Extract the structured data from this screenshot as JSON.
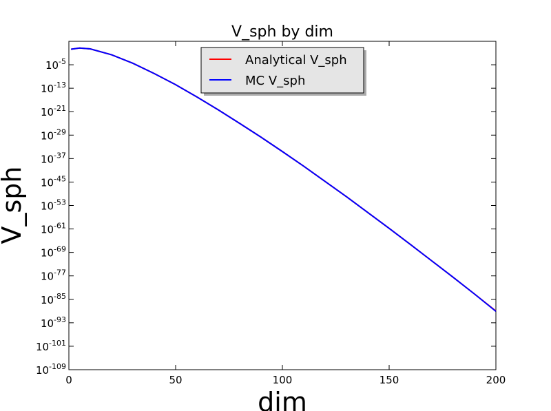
{
  "chart_data": {
    "type": "line",
    "title": "V_sph by dim",
    "xlabel": "dim",
    "ylabel": "V_sph",
    "xlim": [
      0,
      200
    ],
    "ylim_log10": [
      -109,
      3
    ],
    "yscale": "log",
    "x_ticks": [
      "0",
      "50",
      "100",
      "150",
      "200"
    ],
    "y_ticks": [
      {
        "exp": -5,
        "label": "-5"
      },
      {
        "exp": -13,
        "label": "-13"
      },
      {
        "exp": -21,
        "label": "-21"
      },
      {
        "exp": -29,
        "label": "-29"
      },
      {
        "exp": -37,
        "label": "-37"
      },
      {
        "exp": -45,
        "label": "-45"
      },
      {
        "exp": -53,
        "label": "-53"
      },
      {
        "exp": -61,
        "label": "-61"
      },
      {
        "exp": -69,
        "label": "-69"
      },
      {
        "exp": -77,
        "label": "-77"
      },
      {
        "exp": -85,
        "label": "-85"
      },
      {
        "exp": -93,
        "label": "-93"
      },
      {
        "exp": -101,
        "label": "-101"
      },
      {
        "exp": -109,
        "label": "-109"
      }
    ],
    "y_tick_base": "10",
    "legend_position": "top-center",
    "grid": false,
    "series": [
      {
        "name": "Analytical V_sph",
        "color": "#ff0000",
        "x": [
          1,
          5,
          10,
          20,
          30,
          40,
          50,
          60,
          70,
          80,
          90,
          100,
          110,
          120,
          130,
          140,
          150,
          160,
          170,
          180,
          190,
          200
        ],
        "log10_y": [
          0.3,
          0.72,
          0.41,
          -1.59,
          -4.5,
          -8.0,
          -11.8,
          -16.0,
          -20.4,
          -25.0,
          -29.7,
          -34.6,
          -39.6,
          -44.8,
          -50.0,
          -55.4,
          -60.8,
          -66.3,
          -71.9,
          -77.5,
          -83.2,
          -89.0
        ]
      },
      {
        "name": "MC V_sph",
        "color": "#0000ff",
        "x": [
          1,
          5,
          10,
          20,
          30,
          40,
          50,
          60,
          70,
          80,
          90,
          100,
          110,
          120,
          130,
          140,
          150,
          160,
          170,
          180,
          190,
          200
        ],
        "log10_y": [
          0.3,
          0.72,
          0.41,
          -1.59,
          -4.5,
          -8.0,
          -11.8,
          -16.0,
          -20.4,
          -25.0,
          -29.7,
          -34.6,
          -39.6,
          -44.8,
          -50.0,
          -55.4,
          -60.8,
          -66.3,
          -71.9,
          -77.5,
          -83.2,
          -89.1
        ]
      }
    ]
  }
}
